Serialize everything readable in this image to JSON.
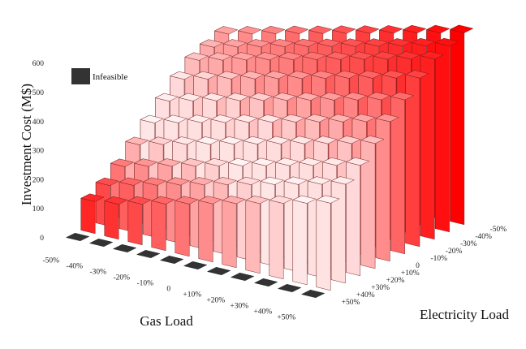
{
  "chart_data": {
    "type": "bar3d",
    "zlabel": "Investment Cost (M$)",
    "xlabel": "Gas Load",
    "ylabel": "Electricity Load",
    "z_ticks": [
      "0",
      "100",
      "200",
      "300",
      "400",
      "500",
      "600"
    ],
    "zlim": [
      0,
      600
    ],
    "gas_categories": [
      "-50%",
      "-40%",
      "-30%",
      "-20%",
      "-10%",
      "0",
      "+10%",
      "+20%",
      "+30%",
      "+40%",
      "+50%"
    ],
    "electricity_categories": [
      "-50%",
      "-40%",
      "-30%",
      "-20%",
      "-10%",
      "0",
      "+10%",
      "+20%",
      "+30%",
      "+40%",
      "+50%"
    ],
    "legend": {
      "label": "Infeasible",
      "color": "#333333"
    },
    "colors": {
      "low": "#ffffff",
      "high": "#ff0000"
    },
    "infeasible_electricity_row": "+50%",
    "values": [
      [
        460,
        480,
        500,
        520,
        540,
        560,
        580,
        600,
        620,
        640,
        660
      ],
      [
        440,
        460,
        480,
        500,
        520,
        540,
        560,
        580,
        600,
        620,
        640
      ],
      [
        420,
        440,
        460,
        480,
        500,
        520,
        540,
        560,
        580,
        600,
        620
      ],
      [
        380,
        400,
        420,
        440,
        460,
        480,
        500,
        520,
        540,
        560,
        580
      ],
      [
        330,
        350,
        370,
        390,
        410,
        430,
        450,
        470,
        490,
        510,
        530
      ],
      [
        280,
        300,
        320,
        340,
        360,
        380,
        400,
        420,
        440,
        460,
        480
      ],
      [
        230,
        250,
        270,
        290,
        310,
        330,
        350,
        370,
        390,
        410,
        430
      ],
      [
        180,
        200,
        220,
        240,
        260,
        280,
        300,
        320,
        340,
        360,
        380
      ],
      [
        140,
        160,
        180,
        200,
        220,
        240,
        260,
        280,
        300,
        320,
        340
      ],
      [
        110,
        120,
        140,
        160,
        180,
        200,
        220,
        240,
        260,
        280,
        300
      ],
      [
        null,
        null,
        null,
        null,
        null,
        null,
        null,
        null,
        null,
        null,
        null
      ]
    ]
  }
}
